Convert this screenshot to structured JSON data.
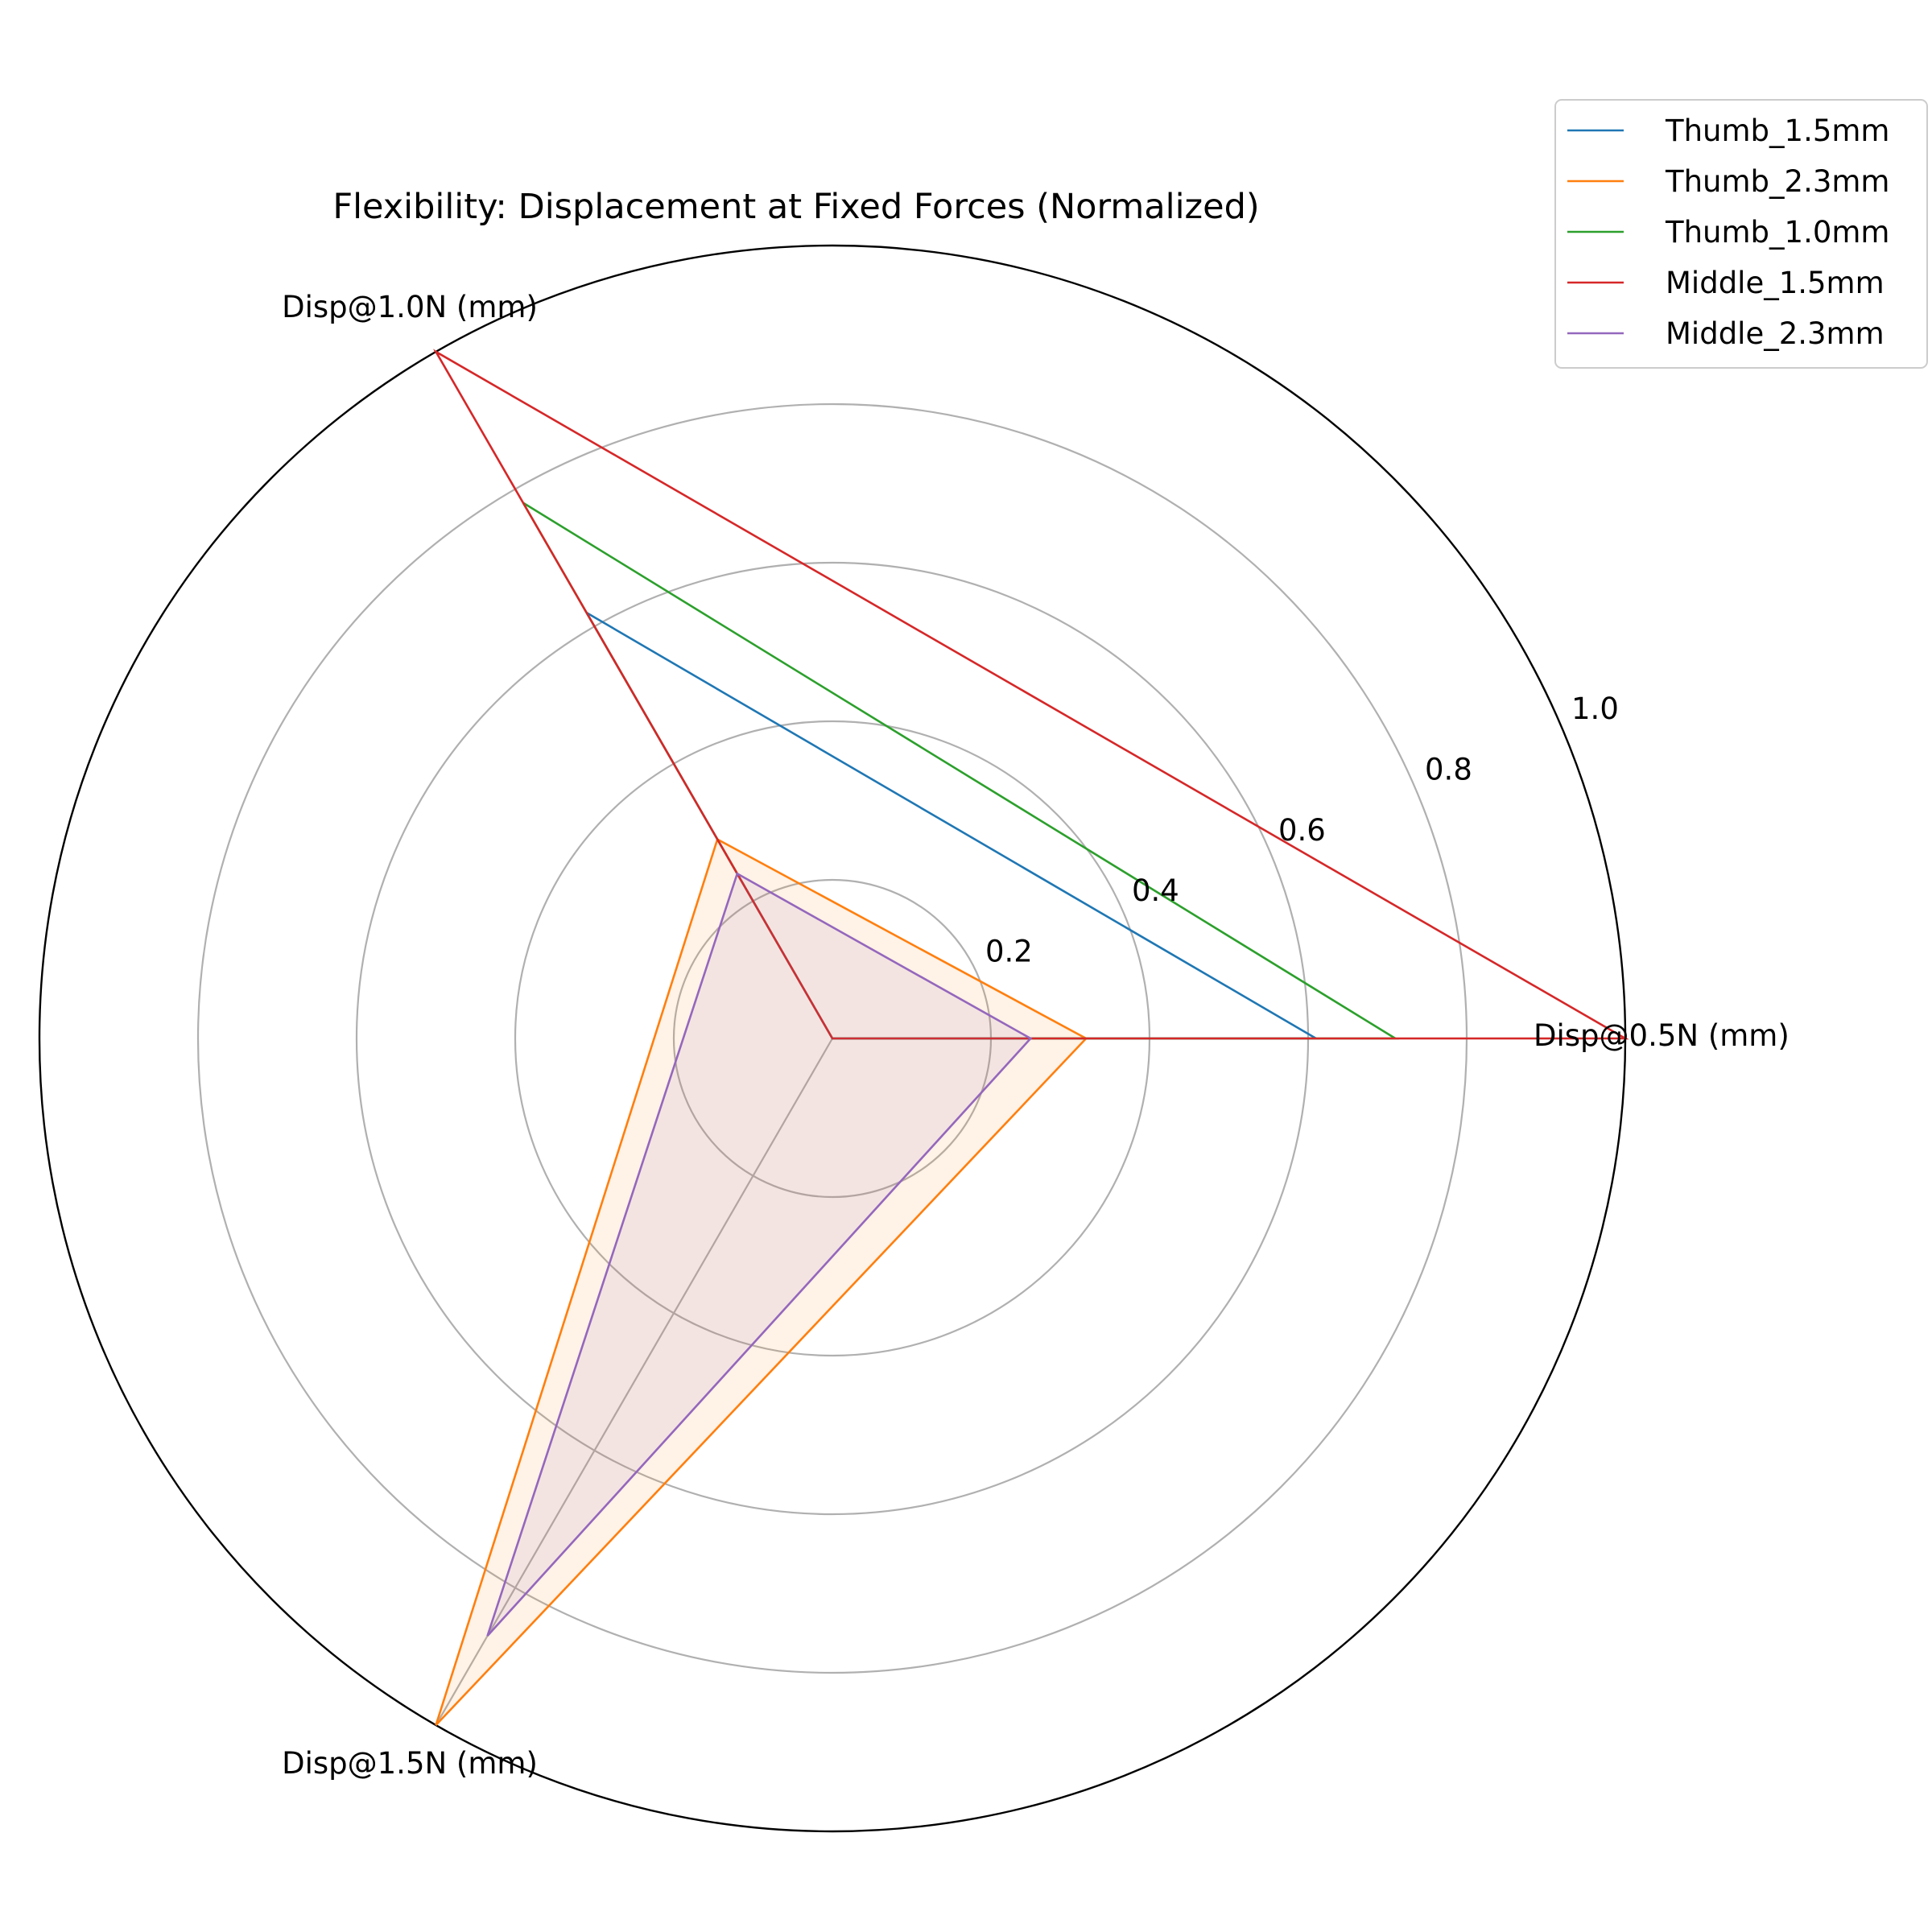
{
  "chart_data": {
    "type": "radar",
    "title": "Flexibility: Displacement at Fixed Forces (Normalized)",
    "axes": [
      "Disp@0.5N (mm)",
      "Disp@1.0N (mm)",
      "Disp@1.5N (mm)"
    ],
    "rlim": [
      0,
      1.0
    ],
    "rticks": [
      0.2,
      0.4,
      0.6,
      0.8,
      1.0
    ],
    "rtick_labels": [
      "0.2",
      "0.4",
      "0.6",
      "0.8",
      "1.0"
    ],
    "grid": true,
    "legend_position": "top-right",
    "series": [
      {
        "name": "Thumb_1.5mm",
        "color": "#1f77b4",
        "values": [
          0.61,
          0.62,
          0.0
        ],
        "filled": false
      },
      {
        "name": "Thumb_2.3mm",
        "color": "#ff7f0e",
        "values": [
          0.32,
          0.29,
          1.0
        ],
        "filled": true
      },
      {
        "name": "Thumb_1.0mm",
        "color": "#2ca02c",
        "values": [
          0.71,
          0.78,
          0.0
        ],
        "filled": false
      },
      {
        "name": "Middle_1.5mm",
        "color": "#d62728",
        "values": [
          1.0,
          1.0,
          0.0
        ],
        "filled": false
      },
      {
        "name": "Middle_2.3mm",
        "color": "#9467bd",
        "values": [
          0.25,
          0.24,
          0.87
        ],
        "filled": true
      }
    ]
  }
}
